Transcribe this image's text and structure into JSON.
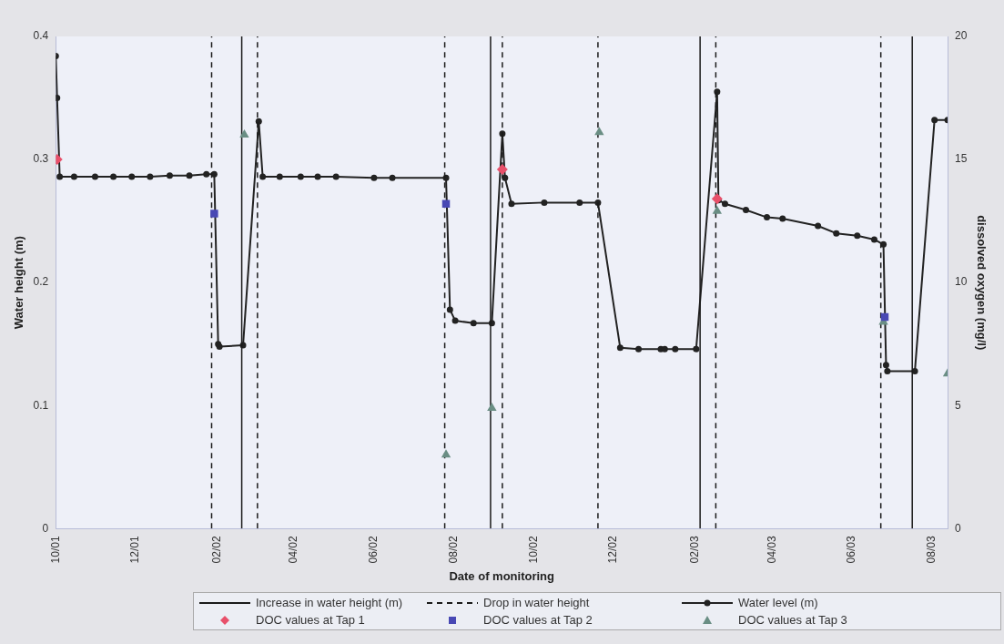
{
  "chart_data": {
    "type": "line",
    "xlabel": "Date of monitoring",
    "ylabel": "Water height (m)",
    "y2label": "dissolved oxygen (mg/l)",
    "xlim": [
      "2001-10-01",
      "2003-08-13"
    ],
    "xticks": [
      {
        "value": "2001-10",
        "label": "10/01"
      },
      {
        "value": "2001-12",
        "label": "12/01"
      },
      {
        "value": "2002-02",
        "label": "02/02"
      },
      {
        "value": "2002-04",
        "label": "04/02"
      },
      {
        "value": "2002-06",
        "label": "06/02"
      },
      {
        "value": "2002-08",
        "label": "08/02"
      },
      {
        "value": "2002-10",
        "label": "10/02"
      },
      {
        "value": "2002-12",
        "label": "12/02"
      },
      {
        "value": "2003-02",
        "label": "02/03"
      },
      {
        "value": "2003-04",
        "label": "04/03"
      },
      {
        "value": "2003-06",
        "label": "06/03"
      },
      {
        "value": "2003-08",
        "label": "08/03"
      }
    ],
    "ylim": [
      0,
      0.4
    ],
    "yticks": [
      0,
      0.1,
      0.2,
      0.3,
      0.4
    ],
    "y2lim": [
      0,
      20
    ],
    "y2ticks": [
      0,
      5,
      10,
      15,
      20
    ],
    "grid": false,
    "legend": "bottom",
    "series": [
      {
        "name": "Increase in water height (m)",
        "type": "line",
        "color": "#1a1a1a",
        "line_style": "solid",
        "marker": "none",
        "x": [
          "2002-02-20",
          "2002-02-20",
          null,
          "2002-08-29",
          "2002-08-29",
          null,
          "2003-02-05",
          "2003-02-05",
          null,
          "2003-07-17",
          "2003-07-17"
        ],
        "values": [
          0,
          0.4,
          null,
          0,
          0.4,
          null,
          0,
          0.4,
          null,
          0,
          0.4
        ]
      },
      {
        "name": "Drop in water height",
        "type": "line",
        "color": "#1a1a1a",
        "line_style": "dashed",
        "marker": "none",
        "x": [
          "2002-01-28",
          "2002-01-28",
          null,
          "2002-03-04",
          "2002-03-04",
          null,
          "2002-07-25",
          "2002-07-25",
          null,
          "2002-09-07",
          "2002-09-07",
          null,
          "2002-11-19",
          "2002-11-19",
          null,
          "2003-02-17",
          "2003-02-17",
          null,
          "2003-06-23",
          "2003-06-23"
        ],
        "values": [
          0,
          0.4,
          null,
          0,
          0.4,
          null,
          0,
          0.4,
          null,
          0,
          0.4,
          null,
          0,
          0.4,
          null,
          0,
          0.4,
          null,
          0,
          0.4
        ]
      },
      {
        "name": "Water level (m)",
        "type": "line",
        "color": "#222222",
        "line_style": "solid",
        "marker": "circle",
        "x": [
          "2001-10-01",
          "2001-10-02",
          "2001-10-04",
          "2001-10-15",
          "2001-10-31",
          "2001-11-14",
          "2001-11-28",
          "2001-12-12",
          "2001-12-27",
          "2002-01-11",
          "2002-01-24",
          "2002-01-30",
          "2002-02-02",
          "2002-02-03",
          "2002-02-21",
          "2002-03-05",
          "2002-03-08",
          "2002-03-21",
          "2002-04-06",
          "2002-04-19",
          "2002-05-03",
          "2002-06-01",
          "2002-06-15",
          "2002-07-26",
          "2002-07-29",
          "2002-08-02",
          "2002-08-16",
          "2002-08-30",
          "2002-09-07",
          "2002-09-09",
          "2002-09-14",
          "2002-10-09",
          "2002-11-05",
          "2002-11-19",
          "2002-12-06",
          "2002-12-20",
          "2003-01-06",
          "2003-01-09",
          "2003-01-17",
          "2003-02-02",
          "2003-02-18",
          "2003-02-19",
          "2003-02-24",
          "2003-03-12",
          "2003-03-28",
          "2003-04-09",
          "2003-05-06",
          "2003-05-20",
          "2003-06-05",
          "2003-06-18",
          "2003-06-25",
          "2003-06-27",
          "2003-06-28",
          "2003-07-19",
          "2003-08-03",
          "2003-08-13"
        ],
        "values": [
          0.384,
          0.35,
          0.286,
          0.286,
          0.286,
          0.286,
          0.286,
          0.286,
          0.287,
          0.287,
          0.288,
          0.288,
          0.15,
          0.148,
          0.149,
          0.331,
          0.286,
          0.286,
          0.286,
          0.286,
          0.286,
          0.285,
          0.285,
          0.285,
          0.178,
          0.169,
          0.167,
          0.167,
          0.321,
          0.285,
          0.264,
          0.265,
          0.265,
          0.265,
          0.147,
          0.146,
          0.146,
          0.146,
          0.146,
          0.146,
          0.355,
          0.267,
          0.264,
          0.259,
          0.253,
          0.252,
          0.246,
          0.24,
          0.238,
          0.235,
          0.231,
          0.133,
          0.128,
          0.128,
          0.332,
          0.332
        ]
      },
      {
        "name": "DOC values at Tap 1",
        "type": "scatter",
        "axis": "y2",
        "color": "#e8506a",
        "marker": "diamond",
        "x": [
          "2001-10-02",
          "2002-09-07",
          "2003-02-18"
        ],
        "values": [
          15.0,
          14.6,
          13.4
        ]
      },
      {
        "name": "DOC values at Tap 2",
        "type": "scatter",
        "axis": "y2",
        "color": "#4848b4",
        "marker": "square",
        "x": [
          "2002-01-30",
          "2002-07-26",
          "2003-06-26"
        ],
        "values": [
          12.8,
          13.2,
          8.6
        ]
      },
      {
        "name": "DOC values at Tap 3",
        "type": "scatter",
        "axis": "y2",
        "color": "#6a8e84",
        "marker": "triangle",
        "x": [
          "2002-02-22",
          "2002-07-26",
          "2002-08-30",
          "2002-11-20",
          "2003-02-18",
          "2003-06-25",
          "2003-08-13"
        ],
        "values": [
          16.0,
          3.0,
          4.9,
          16.1,
          12.9,
          8.4,
          6.3
        ]
      }
    ]
  }
}
